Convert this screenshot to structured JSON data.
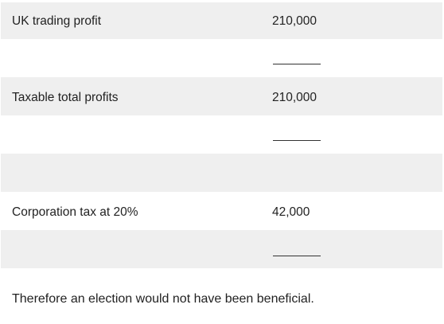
{
  "table": {
    "rows": [
      {
        "label": "UK trading profit",
        "value": "210,000"
      },
      {
        "label": "Taxable total profits",
        "value": "210,000"
      },
      {
        "label": "Corporation tax at 20%",
        "value": "42,000"
      }
    ]
  },
  "conclusion": "Therefore an election would not have been beneficial."
}
